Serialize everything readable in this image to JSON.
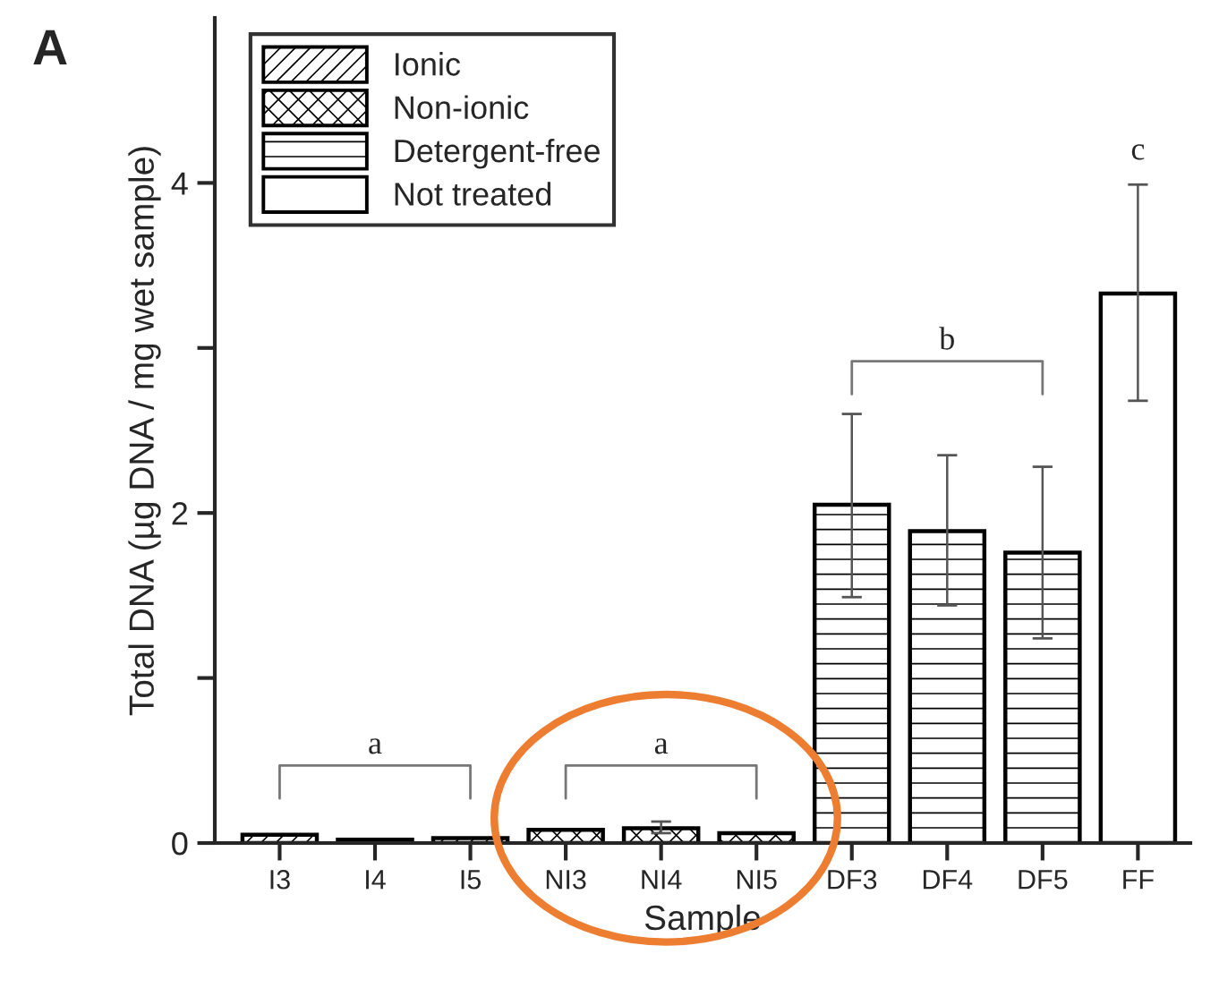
{
  "chart_data": {
    "type": "bar",
    "xlabel": "Sample",
    "ylabel": "Total DNA (µg DNA / mg wet sample)",
    "categories": [
      "I3",
      "I4",
      "I5",
      "NI3",
      "NI4",
      "NI5",
      "DF3",
      "DF4",
      "DF5",
      "FF"
    ],
    "series": [
      {
        "name": "Ionic",
        "color": "#000000",
        "values": [
          0.05,
          0.02,
          0.03,
          null,
          null,
          null,
          null,
          null,
          null,
          null
        ]
      },
      {
        "name": "Non-ionic",
        "color": "#000000",
        "values": [
          null,
          null,
          null,
          0.08,
          0.09,
          0.06,
          null,
          null,
          null,
          null
        ],
        "errors": [
          null,
          null,
          null,
          null,
          [
            0.06,
            0.13
          ],
          null,
          null,
          null,
          null,
          null
        ]
      },
      {
        "name": "Detergent-free",
        "color": "#000000",
        "values": [
          null,
          null,
          null,
          null,
          null,
          null,
          2.05,
          1.89,
          1.76,
          null
        ],
        "errors": [
          null,
          null,
          null,
          null,
          null,
          null,
          [
            1.49,
            2.6
          ],
          [
            1.44,
            2.35
          ],
          [
            1.24,
            2.28
          ],
          null
        ]
      },
      {
        "name": "Not treated",
        "color": "#000000",
        "values": [
          null,
          null,
          null,
          null,
          null,
          null,
          null,
          null,
          null,
          3.33
        ],
        "errors": [
          null,
          null,
          null,
          null,
          null,
          null,
          null,
          null,
          null,
          [
            2.68,
            3.99
          ]
        ]
      }
    ],
    "ylim": [
      0,
      5
    ],
    "yticks": [
      0,
      {
        "value": 1,
        "label": null
      },
      2,
      {
        "value": 3,
        "label": null
      },
      4
    ],
    "grid": false,
    "legend": "top left",
    "annotations": [
      "A",
      "a",
      "a",
      "b",
      "c"
    ]
  }
}
